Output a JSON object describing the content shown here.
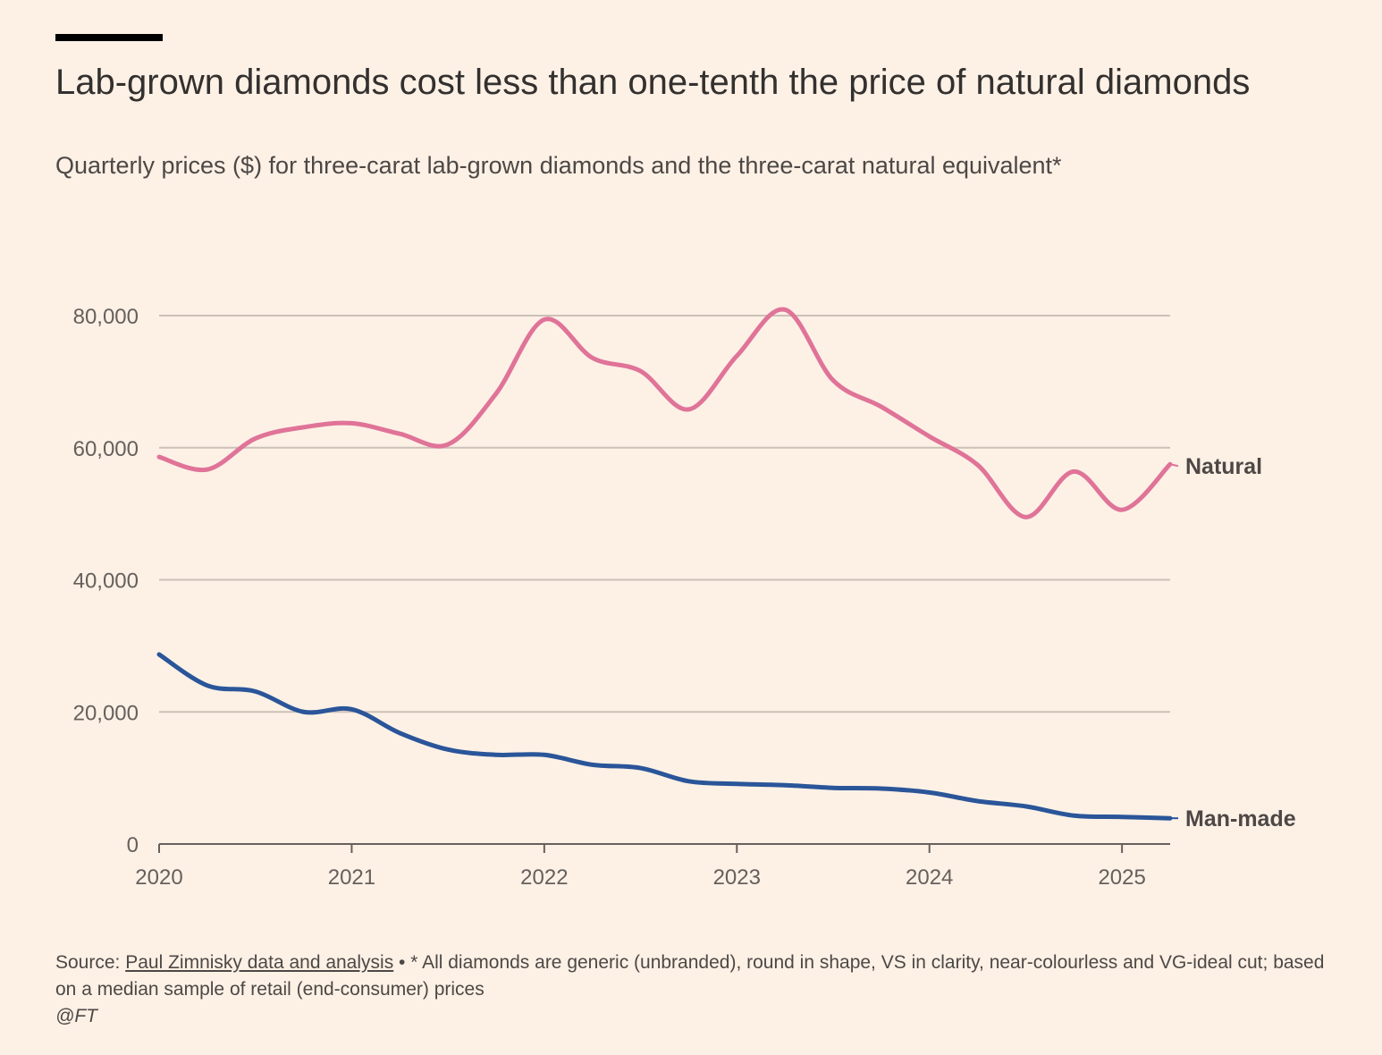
{
  "title": "Lab-grown diamonds cost less than one-tenth the price of natural diamonds",
  "subtitle": "Quarterly prices ($) for three-carat lab-grown diamonds and the three-carat natural equivalent*",
  "footer": {
    "source_prefix": "Source: ",
    "source_link": "Paul Zimnisky data and analysis",
    "note": " • * All diamonds are generic (unbranded), round in shape, VS in clarity, near-colourless and VG-ideal cut; based on a median sample of retail (end-consumer) prices",
    "credit": "@FT"
  },
  "chart_data": {
    "type": "line",
    "title": "Lab-grown diamonds cost less than one-tenth the price of natural diamonds",
    "subtitle": "Quarterly prices ($) for three-carat lab-grown diamonds and the three-carat natural equivalent*",
    "x": [
      2020.0,
      2020.25,
      2020.5,
      2020.75,
      2021.0,
      2021.25,
      2021.5,
      2021.75,
      2022.0,
      2022.25,
      2022.5,
      2022.75,
      2023.0,
      2023.25,
      2023.5,
      2023.75,
      2024.0,
      2024.25,
      2024.5,
      2024.75,
      2025.0,
      2025.25
    ],
    "x_ticks": [
      "2020",
      "2021",
      "2022",
      "2023",
      "2024",
      "2025"
    ],
    "x_tick_values": [
      2020,
      2021,
      2022,
      2023,
      2024,
      2025
    ],
    "y_ticks": [
      "0",
      "20,000",
      "40,000",
      "60,000",
      "80,000"
    ],
    "y_tick_values": [
      0,
      20000,
      40000,
      60000,
      80000
    ],
    "xlim": [
      2020,
      2025.25
    ],
    "ylim": [
      0,
      80000
    ],
    "grid": "horizontal",
    "legend": "direct labels at line ends (right)",
    "series": [
      {
        "name": "Natural",
        "color": "#e07398",
        "values": [
          58600,
          56700,
          61400,
          63100,
          63700,
          62100,
          60500,
          68200,
          79400,
          73600,
          71600,
          65800,
          73900,
          80900,
          70200,
          66200,
          61700,
          57400,
          49500,
          56400,
          50600,
          57500
        ]
      },
      {
        "name": "Man-made",
        "color": "#2a5599",
        "values": [
          28700,
          24000,
          23100,
          20000,
          20400,
          16800,
          14300,
          13500,
          13500,
          12000,
          11500,
          9500,
          9100,
          8900,
          8500,
          8400,
          7800,
          6500,
          5700,
          4300,
          4100,
          3900
        ]
      }
    ]
  }
}
